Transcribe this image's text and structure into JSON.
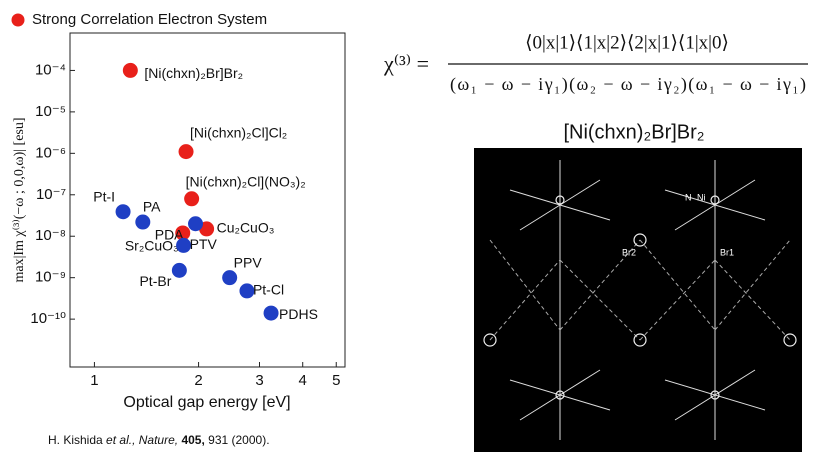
{
  "chart_data": {
    "type": "scatter",
    "x_label": "Optical gap energy [eV]",
    "y_label": "max|Im χ⁽³⁾(−ω ; 0,0,ω)| [esu]",
    "xscale": "log",
    "yscale": "log",
    "xlim": [
      0.85,
      5.3
    ],
    "ylim": [
      7e-12,
      0.0008
    ],
    "xticks": [
      1,
      2,
      3,
      4,
      5
    ],
    "yticks": [
      {
        "value": 0.0001,
        "label": "10⁻⁴"
      },
      {
        "value": 1e-05,
        "label": "10⁻⁵"
      },
      {
        "value": 1e-06,
        "label": "10⁻⁶"
      },
      {
        "value": 1e-07,
        "label": "10⁻⁷"
      },
      {
        "value": 1e-08,
        "label": "10⁻⁸"
      },
      {
        "value": 1e-09,
        "label": "10⁻⁹"
      },
      {
        "value": 1e-10,
        "label": "10⁻¹⁰"
      }
    ],
    "series": [
      {
        "name": "Strong Correlation Electron System",
        "color": "#e8201a",
        "x": [
          1.27,
          1.84,
          1.91,
          1.8,
          2.11
        ],
        "values": [
          0.0001,
          1.1e-06,
          8e-08,
          1.2e-08,
          1.5e-08
        ],
        "labels": [
          "[Ni(chxn)₂Br]Br₂",
          "[Ni(chxn)₂Cl]Cl₂",
          "[Ni(chxn)₂Cl](NO₃)₂",
          "Sr₂CuO₃",
          "Cu₂CuO₃"
        ]
      },
      {
        "color": "#1f3fc4",
        "x": [
          1.21,
          1.38,
          1.96,
          1.81,
          1.76,
          2.46,
          2.76,
          3.24
        ],
        "values": [
          3.9e-08,
          2.2e-08,
          2e-08,
          6e-09,
          1.5e-09,
          1e-09,
          4.8e-10,
          1.4e-10
        ],
        "labels": [
          "Pt-I",
          "PA",
          "PDA",
          "PTV",
          "Pt-Br",
          "PPV",
          "Pt-Cl",
          "PDHS"
        ]
      }
    ]
  },
  "citation": {
    "author": "H. Kishida",
    "etal": "et al.,",
    "journal": "Nature,",
    "volume": "405,",
    "rest": "931 (2000)."
  },
  "equation": {
    "lhs": "χ⁽³⁾ =",
    "numerator": "⟨0|x|1⟩⟨1|x|2⟩⟨2|x|1⟩⟨1|x|0⟩",
    "denominator": "(ω₁ − ω − iγ₁)(ω₂ − ω − iγ₂)(ω₁ − ω − iγ₁)"
  },
  "structure": {
    "title": "[Ni(chxn)₂Br]Br₂",
    "labels": [
      "N",
      "Ni",
      "Br2",
      "Br1"
    ]
  }
}
